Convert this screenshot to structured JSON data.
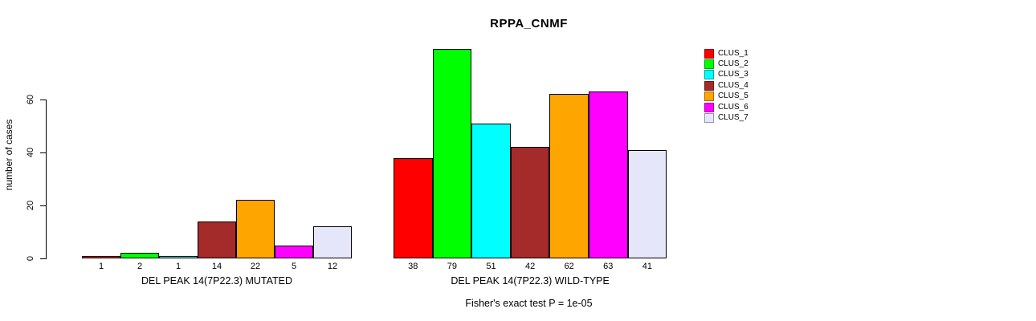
{
  "chart_data": {
    "type": "bar",
    "title": "RPPA_CNMF",
    "ylabel": "number of cases",
    "xlabel": "",
    "yticks": [
      0,
      20,
      40,
      60
    ],
    "ylim": [
      0,
      79
    ],
    "grid": false,
    "legend_position": "right-inside",
    "legend": [
      "CLUS_1",
      "CLUS_2",
      "CLUS_3",
      "CLUS_4",
      "CLUS_5",
      "CLUS_6",
      "CLUS_7"
    ],
    "series_colors": [
      "#ff0000",
      "#00ff00",
      "#00ffff",
      "#a52a2a",
      "#ffa500",
      "#ff00ff",
      "#e6e6fa"
    ],
    "groups": [
      {
        "label": "DEL PEAK 14(7P22.3) MUTATED",
        "values": [
          1,
          2,
          1,
          14,
          22,
          5,
          12
        ]
      },
      {
        "label": "DEL PEAK 14(7P22.3) WILD-TYPE",
        "values": [
          38,
          79,
          51,
          42,
          62,
          63,
          41
        ]
      }
    ],
    "annotation": "Fisher's exact test P = 1e-05"
  }
}
